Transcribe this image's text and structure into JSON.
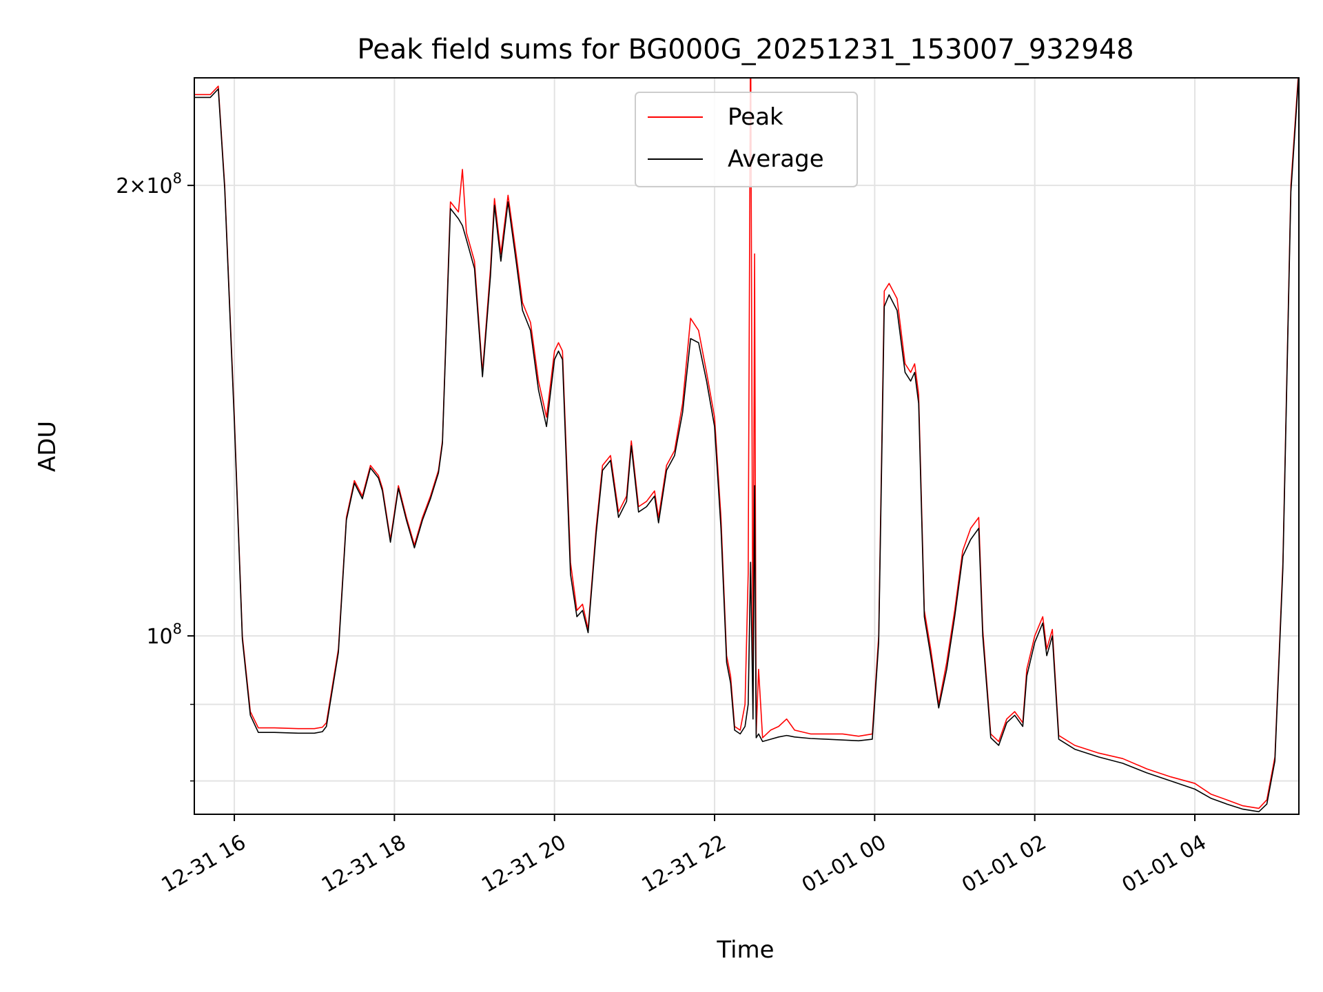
{
  "chart_data": {
    "type": "line",
    "title": "Peak field sums for BG000G_20251231_153007_932948",
    "xlabel": "Time",
    "ylabel": "ADU",
    "yscale": "log",
    "ylim": [
      76000000,
      236000000
    ],
    "x_units": "hours since 2025-12-31 00:00",
    "xlim": [
      15.5,
      29.3
    ],
    "x_ticks": [
      {
        "value": 16,
        "label": "12-31 16"
      },
      {
        "value": 18,
        "label": "12-31 18"
      },
      {
        "value": 20,
        "label": "12-31 20"
      },
      {
        "value": 22,
        "label": "12-31 22"
      },
      {
        "value": 24,
        "label": "01-01 00"
      },
      {
        "value": 26,
        "label": "01-01 02"
      },
      {
        "value": 28,
        "label": "01-01 04"
      }
    ],
    "y_major_ticks": [
      {
        "value": 100000000,
        "mantissa": "",
        "base": "10",
        "exp": "8"
      },
      {
        "value": 200000000,
        "mantissa": "2×",
        "base": "10",
        "exp": "8"
      }
    ],
    "y_minor_ticks": [
      80000000,
      90000000
    ],
    "grid": true,
    "legend_position": "top-center",
    "series": [
      {
        "name": "Peak",
        "color": "#ff0000",
        "points": [
          [
            15.5,
            230000000
          ],
          [
            15.7,
            230000000
          ],
          [
            15.8,
            233000000
          ],
          [
            15.88,
            200000000
          ],
          [
            16.0,
            140000000
          ],
          [
            16.1,
            100000000
          ],
          [
            16.2,
            89000000
          ],
          [
            16.3,
            86800000
          ],
          [
            16.5,
            86800000
          ],
          [
            16.8,
            86700000
          ],
          [
            17.0,
            86700000
          ],
          [
            17.1,
            86900000
          ],
          [
            17.15,
            87500000
          ],
          [
            17.3,
            98000000
          ],
          [
            17.4,
            120000000
          ],
          [
            17.5,
            127000000
          ],
          [
            17.6,
            124000000
          ],
          [
            17.7,
            130000000
          ],
          [
            17.8,
            128000000
          ],
          [
            17.85,
            125500000
          ],
          [
            17.95,
            116000000
          ],
          [
            18.05,
            126000000
          ],
          [
            18.15,
            120000000
          ],
          [
            18.25,
            115000000
          ],
          [
            18.35,
            120000000
          ],
          [
            18.45,
            124000000
          ],
          [
            18.55,
            129000000
          ],
          [
            18.6,
            135000000
          ],
          [
            18.7,
            195000000
          ],
          [
            18.8,
            192000000
          ],
          [
            18.85,
            205000000
          ],
          [
            18.9,
            186000000
          ],
          [
            19.0,
            178000000
          ],
          [
            19.1,
            150000000
          ],
          [
            19.2,
            176000000
          ],
          [
            19.25,
            196000000
          ],
          [
            19.33,
            180000000
          ],
          [
            19.42,
            197000000
          ],
          [
            19.52,
            180000000
          ],
          [
            19.6,
            167000000
          ],
          [
            19.7,
            162000000
          ],
          [
            19.8,
            148000000
          ],
          [
            19.9,
            140000000
          ],
          [
            20.0,
            155000000
          ],
          [
            20.05,
            157000000
          ],
          [
            20.1,
            155000000
          ],
          [
            20.2,
            112000000
          ],
          [
            20.28,
            104000000
          ],
          [
            20.35,
            105000000
          ],
          [
            20.42,
            101000000
          ],
          [
            20.52,
            118000000
          ],
          [
            20.6,
            130000000
          ],
          [
            20.7,
            132000000
          ],
          [
            20.8,
            121000000
          ],
          [
            20.9,
            124000000
          ],
          [
            20.96,
            135000000
          ],
          [
            21.05,
            122000000
          ],
          [
            21.15,
            123000000
          ],
          [
            21.25,
            125000000
          ],
          [
            21.3,
            120000000
          ],
          [
            21.4,
            130000000
          ],
          [
            21.5,
            133000000
          ],
          [
            21.6,
            143000000
          ],
          [
            21.7,
            163000000
          ],
          [
            21.8,
            160000000
          ],
          [
            21.9,
            150000000
          ],
          [
            22.0,
            140000000
          ],
          [
            22.08,
            120000000
          ],
          [
            22.15,
            97000000
          ],
          [
            22.2,
            94000000
          ],
          [
            22.25,
            87000000
          ],
          [
            22.32,
            86500000
          ],
          [
            22.38,
            90000000
          ],
          [
            22.42,
            110000000
          ],
          [
            22.45,
            260000000
          ],
          [
            22.48,
            90000000
          ],
          [
            22.5,
            180000000
          ],
          [
            22.52,
            86000000
          ],
          [
            22.55,
            95000000
          ],
          [
            22.6,
            85500000
          ],
          [
            22.7,
            86500000
          ],
          [
            22.8,
            87000000
          ],
          [
            22.9,
            88000000
          ],
          [
            23.0,
            86500000
          ],
          [
            23.2,
            86000000
          ],
          [
            23.4,
            86000000
          ],
          [
            23.6,
            86000000
          ],
          [
            23.8,
            85700000
          ],
          [
            23.97,
            86000000
          ],
          [
            24.05,
            100000000
          ],
          [
            24.12,
            170000000
          ],
          [
            24.18,
            172000000
          ],
          [
            24.28,
            168000000
          ],
          [
            24.38,
            152000000
          ],
          [
            24.45,
            150000000
          ],
          [
            24.5,
            152000000
          ],
          [
            24.55,
            145000000
          ],
          [
            24.62,
            104000000
          ],
          [
            24.7,
            98000000
          ],
          [
            24.8,
            90000000
          ],
          [
            24.9,
            96000000
          ],
          [
            25.0,
            104000000
          ],
          [
            25.1,
            114000000
          ],
          [
            25.2,
            118000000
          ],
          [
            25.3,
            120000000
          ],
          [
            25.35,
            101000000
          ],
          [
            25.45,
            86000000
          ],
          [
            25.55,
            85000000
          ],
          [
            25.65,
            88000000
          ],
          [
            25.75,
            89000000
          ],
          [
            25.85,
            87500000
          ],
          [
            25.9,
            95000000
          ],
          [
            26.0,
            100000000
          ],
          [
            26.1,
            103000000
          ],
          [
            26.15,
            98000000
          ],
          [
            26.22,
            101000000
          ],
          [
            26.3,
            85800000
          ],
          [
            26.5,
            84500000
          ],
          [
            26.8,
            83500000
          ],
          [
            27.1,
            82800000
          ],
          [
            27.4,
            81500000
          ],
          [
            27.7,
            80500000
          ],
          [
            28.0,
            79700000
          ],
          [
            28.2,
            78400000
          ],
          [
            28.4,
            77700000
          ],
          [
            28.6,
            77000000
          ],
          [
            28.8,
            76700000
          ],
          [
            28.9,
            77700000
          ],
          [
            29.0,
            83000000
          ],
          [
            29.1,
            112000000
          ],
          [
            29.2,
            200000000
          ],
          [
            29.3,
            240000000
          ]
        ]
      },
      {
        "name": "Average",
        "color": "#000000",
        "points": [
          [
            15.5,
            229000000
          ],
          [
            15.7,
            229000000
          ],
          [
            15.8,
            232000000
          ],
          [
            15.88,
            199000000
          ],
          [
            16.0,
            139000000
          ],
          [
            16.1,
            99500000
          ],
          [
            16.2,
            88500000
          ],
          [
            16.3,
            86200000
          ],
          [
            16.5,
            86200000
          ],
          [
            16.8,
            86100000
          ],
          [
            17.0,
            86100000
          ],
          [
            17.1,
            86300000
          ],
          [
            17.15,
            87000000
          ],
          [
            17.3,
            97500000
          ],
          [
            17.4,
            119500000
          ],
          [
            17.5,
            126500000
          ],
          [
            17.6,
            123500000
          ],
          [
            17.7,
            129500000
          ],
          [
            17.8,
            127500000
          ],
          [
            17.85,
            125000000
          ],
          [
            17.95,
            115500000
          ],
          [
            18.05,
            125500000
          ],
          [
            18.15,
            119500000
          ],
          [
            18.25,
            114500000
          ],
          [
            18.35,
            119500000
          ],
          [
            18.45,
            123500000
          ],
          [
            18.55,
            128500000
          ],
          [
            18.6,
            134500000
          ],
          [
            18.7,
            193000000
          ],
          [
            18.8,
            190000000
          ],
          [
            18.85,
            188000000
          ],
          [
            18.9,
            184000000
          ],
          [
            19.0,
            176000000
          ],
          [
            19.1,
            149000000
          ],
          [
            19.2,
            174000000
          ],
          [
            19.25,
            194000000
          ],
          [
            19.33,
            178000000
          ],
          [
            19.42,
            195000000
          ],
          [
            19.52,
            178000000
          ],
          [
            19.6,
            165000000
          ],
          [
            19.7,
            160000000
          ],
          [
            19.8,
            146000000
          ],
          [
            19.9,
            138000000
          ],
          [
            20.0,
            153000000
          ],
          [
            20.05,
            155000000
          ],
          [
            20.1,
            153000000
          ],
          [
            20.2,
            110000000
          ],
          [
            20.28,
            103000000
          ],
          [
            20.35,
            104000000
          ],
          [
            20.42,
            100500000
          ],
          [
            20.52,
            117000000
          ],
          [
            20.6,
            129000000
          ],
          [
            20.7,
            131000000
          ],
          [
            20.8,
            120000000
          ],
          [
            20.9,
            123000000
          ],
          [
            20.96,
            134000000
          ],
          [
            21.05,
            121000000
          ],
          [
            21.15,
            122000000
          ],
          [
            21.25,
            124000000
          ],
          [
            21.3,
            119000000
          ],
          [
            21.4,
            129000000
          ],
          [
            21.5,
            132000000
          ],
          [
            21.6,
            141000000
          ],
          [
            21.7,
            158000000
          ],
          [
            21.8,
            157000000
          ],
          [
            21.9,
            148000000
          ],
          [
            22.0,
            138000000
          ],
          [
            22.08,
            118000000
          ],
          [
            22.15,
            96000000
          ],
          [
            22.2,
            93000000
          ],
          [
            22.25,
            86500000
          ],
          [
            22.32,
            86000000
          ],
          [
            22.38,
            87000000
          ],
          [
            22.42,
            90000000
          ],
          [
            22.45,
            112000000
          ],
          [
            22.48,
            88000000
          ],
          [
            22.5,
            126000000
          ],
          [
            22.52,
            85500000
          ],
          [
            22.55,
            86000000
          ],
          [
            22.6,
            85000000
          ],
          [
            22.7,
            85300000
          ],
          [
            22.8,
            85600000
          ],
          [
            22.9,
            85800000
          ],
          [
            23.0,
            85600000
          ],
          [
            23.2,
            85400000
          ],
          [
            23.4,
            85300000
          ],
          [
            23.6,
            85200000
          ],
          [
            23.8,
            85100000
          ],
          [
            23.97,
            85300000
          ],
          [
            24.05,
            99000000
          ],
          [
            24.12,
            166000000
          ],
          [
            24.18,
            169000000
          ],
          [
            24.28,
            165000000
          ],
          [
            24.38,
            150000000
          ],
          [
            24.45,
            148000000
          ],
          [
            24.5,
            150000000
          ],
          [
            24.55,
            143000000
          ],
          [
            24.62,
            103000000
          ],
          [
            24.7,
            97000000
          ],
          [
            24.8,
            89500000
          ],
          [
            24.9,
            95000000
          ],
          [
            25.0,
            103000000
          ],
          [
            25.1,
            113000000
          ],
          [
            25.2,
            116000000
          ],
          [
            25.3,
            118000000
          ],
          [
            25.35,
            100000000
          ],
          [
            25.45,
            85500000
          ],
          [
            25.55,
            84500000
          ],
          [
            25.65,
            87500000
          ],
          [
            25.75,
            88500000
          ],
          [
            25.85,
            87000000
          ],
          [
            25.9,
            94000000
          ],
          [
            26.0,
            99000000
          ],
          [
            26.1,
            102000000
          ],
          [
            26.15,
            97000000
          ],
          [
            26.22,
            100000000
          ],
          [
            26.3,
            85300000
          ],
          [
            26.5,
            84000000
          ],
          [
            26.8,
            83000000
          ],
          [
            27.1,
            82200000
          ],
          [
            27.4,
            81000000
          ],
          [
            27.7,
            80000000
          ],
          [
            28.0,
            79000000
          ],
          [
            28.2,
            77900000
          ],
          [
            28.4,
            77200000
          ],
          [
            28.6,
            76600000
          ],
          [
            28.8,
            76300000
          ],
          [
            28.9,
            77200000
          ],
          [
            29.0,
            82500000
          ],
          [
            29.1,
            111000000
          ],
          [
            29.2,
            198000000
          ],
          [
            29.3,
            238000000
          ]
        ]
      }
    ]
  }
}
